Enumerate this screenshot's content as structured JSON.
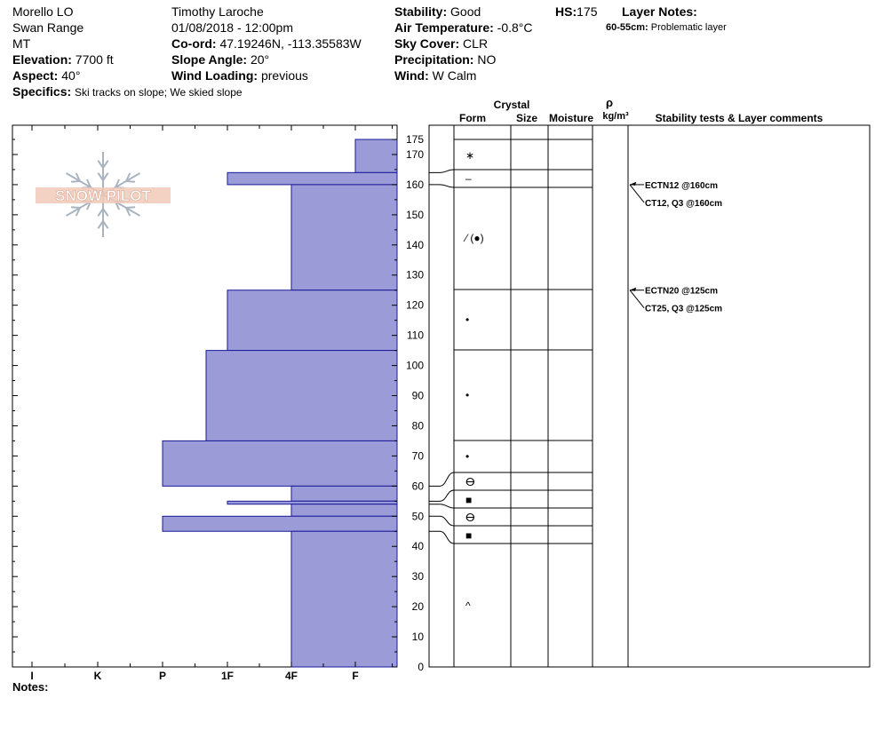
{
  "header": {
    "location": "Morello LO",
    "range": "Swan Range",
    "state": "MT",
    "elevation_label": "Elevation:",
    "elevation": "7700 ft",
    "aspect_label": "Aspect:",
    "aspect": "40°",
    "specifics_label": "Specifics:",
    "specifics": "Ski tracks on slope; We skied slope",
    "observer": "Timothy  Laroche",
    "datetime": "01/08/2018 - 12:00pm",
    "coord_label": "Co-ord:",
    "coord": "47.19246N, -113.35583W",
    "slope_label": "Slope Angle:",
    "slope": "20°",
    "wind_loading_label": "Wind Loading:",
    "wind_loading": "previous",
    "stability_label": "Stability:",
    "stability": "Good",
    "air_temp_label": "Air Temperature:",
    "air_temp": "-0.8°C",
    "sky_label": "Sky Cover:",
    "sky": "CLR",
    "precip_label": "Precipitation:",
    "precip": "NO",
    "wind_label": "Wind:",
    "wind": " W Calm",
    "hs_label": "HS:",
    "hs": "175",
    "layer_notes_label": "Layer Notes:",
    "layer_note_range": "60-55cm:",
    "layer_note_text": "Problematic layer"
  },
  "logo_text": "SNOW PILOT",
  "notes_label": "Notes:",
  "columns": {
    "crystal": "Crystal",
    "form": "Form",
    "size": "Size",
    "moisture": "Moisture",
    "rho": "ρ",
    "density_unit": "kg/m³",
    "stability": "Stability tests & Layer comments"
  },
  "colors": {
    "layer_fill": "#9b9bd8",
    "layer_stroke": "#1a1a99"
  },
  "chart_data": {
    "type": "bar",
    "orientation": "horizontal",
    "title": "",
    "ylabel": "",
    "ylim": [
      0,
      175
    ],
    "y_ticks": [
      0,
      10,
      20,
      30,
      40,
      50,
      60,
      70,
      80,
      90,
      100,
      110,
      120,
      130,
      140,
      150,
      160,
      170,
      175
    ],
    "hardness_scale": [
      "I",
      "K",
      "P",
      "1F",
      "4F",
      "F"
    ],
    "layers": [
      {
        "top": 175,
        "bottom": 164,
        "hardness": "F"
      },
      {
        "top": 164,
        "bottom": 160,
        "hardness": "1F"
      },
      {
        "top": 160,
        "bottom": 125,
        "hardness": "4F"
      },
      {
        "top": 125,
        "bottom": 105,
        "hardness": "1F"
      },
      {
        "top": 105,
        "bottom": 75,
        "hardness": "1F-"
      },
      {
        "top": 75,
        "bottom": 60,
        "hardness": "P"
      },
      {
        "top": 60,
        "bottom": 55,
        "hardness": "4F"
      },
      {
        "top": 55,
        "bottom": 54,
        "hardness": "1F"
      },
      {
        "top": 54,
        "bottom": 50,
        "hardness": "4F"
      },
      {
        "top": 50,
        "bottom": 45,
        "hardness": "P"
      },
      {
        "top": 45,
        "bottom": 0,
        "hardness": "4F"
      }
    ],
    "forms": [
      {
        "depth": 170,
        "symbol": "∗"
      },
      {
        "depth": 162,
        "symbol": "–"
      },
      {
        "depth": 142,
        "symbol": "⁄ (●)"
      },
      {
        "depth": 115,
        "symbol": "•"
      },
      {
        "depth": 90,
        "symbol": "•"
      },
      {
        "depth": 70,
        "symbol": "•"
      },
      {
        "depth": 60,
        "symbol": "ⴱ"
      },
      {
        "depth": 55,
        "symbol": "■"
      },
      {
        "depth": 49,
        "symbol": "ⴱ"
      },
      {
        "depth": 43,
        "symbol": "■"
      },
      {
        "depth": 20,
        "symbol": "^"
      }
    ],
    "tests": [
      {
        "depth": 160,
        "label": "ECTN12 @160cm"
      },
      {
        "depth": 160,
        "label": "CT12, Q3 @160cm"
      },
      {
        "depth": 125,
        "label": "ECTN20 @125cm"
      },
      {
        "depth": 125,
        "label": "CT25, Q3 @125cm"
      }
    ]
  }
}
